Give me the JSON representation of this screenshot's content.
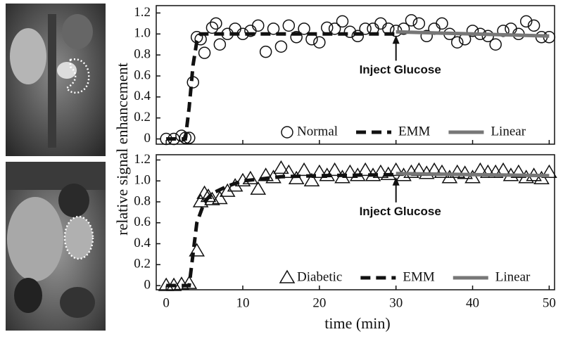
{
  "shared": {
    "y_label": "relative signal enhancement",
    "x_label": "time (min)"
  },
  "chart_data": [
    {
      "type": "scatter",
      "xlim": [
        -1.3,
        50.7
      ],
      "ylim": [
        -0.05,
        1.27
      ],
      "xticks": [
        0,
        10,
        20,
        30,
        40,
        50
      ],
      "yticks": [
        0,
        0.2,
        0.4,
        0.6,
        0.8,
        {
          "value": 1,
          "label": "1.0"
        },
        {
          "value": 1.2,
          "label": "1.2"
        }
      ],
      "legend": "lower right",
      "annotation": {
        "text": "Inject Glucose",
        "x": 30,
        "y": 1.0
      },
      "series": [
        {
          "name": "Normal",
          "marker": "circle",
          "color": "#111111",
          "x": [
            0,
            1,
            2,
            2.5,
            3,
            3.5,
            4,
            4.5,
            5,
            6,
            6.5,
            7,
            8,
            9,
            10,
            11,
            12,
            13,
            14,
            15,
            16,
            17,
            18,
            19,
            20,
            21,
            22,
            23,
            24,
            25,
            26,
            27,
            28,
            29,
            30,
            31,
            32,
            33,
            34,
            35,
            36,
            37,
            38,
            39,
            40,
            41,
            42,
            43,
            44,
            45,
            46,
            47,
            48,
            49,
            50
          ],
          "values": [
            0,
            0,
            0.03,
            0.01,
            0.01,
            0.54,
            0.97,
            0.95,
            0.82,
            1.06,
            1.1,
            0.9,
            1.0,
            1.05,
            1.0,
            1.03,
            1.08,
            0.83,
            1.05,
            0.88,
            1.08,
            0.97,
            1.05,
            0.95,
            0.92,
            1.06,
            1.05,
            1.12,
            1.02,
            0.98,
            1.05,
            1.05,
            1.1,
            1.05,
            1.03,
            1.05,
            1.13,
            1.1,
            0.98,
            1.05,
            1.1,
            1.0,
            0.92,
            0.95,
            1.03,
            1.0,
            0.98,
            0.9,
            1.03,
            1.05,
            1.0,
            1.12,
            1.08,
            0.97,
            0.97
          ]
        },
        {
          "name": "EMM",
          "style": "dashed",
          "color": "#111111",
          "x": [
            0,
            2.5,
            3,
            3.5,
            4,
            4.5,
            5,
            30
          ],
          "values": [
            0,
            0,
            0.3,
            0.7,
            0.93,
            1.0,
            1.0,
            1.0
          ]
        },
        {
          "name": "Linear",
          "style": "solid",
          "color": "#777777",
          "x": [
            30,
            50
          ],
          "values": [
            1.02,
            0.98
          ]
        }
      ]
    },
    {
      "type": "scatter",
      "xlim": [
        -1.3,
        50.7
      ],
      "ylim": [
        -0.04,
        1.25
      ],
      "xticks": [
        0,
        10,
        20,
        30,
        40,
        50
      ],
      "yticks": [
        0,
        0.2,
        0.4,
        0.6,
        0.8,
        {
          "value": 1,
          "label": "1.0"
        },
        {
          "value": 1.2,
          "label": "1.2"
        }
      ],
      "legend": "lower right",
      "annotation": {
        "text": "Inject Glucose",
        "x": 30,
        "y": 1.05
      },
      "series": [
        {
          "name": "Diabetic",
          "marker": "triangle",
          "color": "#111111",
          "x": [
            0,
            1,
            2,
            3,
            4,
            4.5,
            5,
            5.5,
            6,
            7,
            8,
            9,
            10,
            11,
            12,
            13,
            14,
            15,
            16,
            17,
            18,
            19,
            20,
            21,
            22,
            23,
            24,
            25,
            26,
            27,
            28,
            29,
            30,
            31,
            32,
            33,
            34,
            35,
            36,
            37,
            38,
            39,
            40,
            41,
            42,
            43,
            44,
            45,
            46,
            47,
            48,
            49,
            50
          ],
          "values": [
            0,
            0,
            0.01,
            0.02,
            0.33,
            0.8,
            0.88,
            0.85,
            0.82,
            0.83,
            0.9,
            0.95,
            1.0,
            1.02,
            0.92,
            1.05,
            1.03,
            1.12,
            1.08,
            1.02,
            1.1,
            1.0,
            1.08,
            1.05,
            1.1,
            1.03,
            1.08,
            1.05,
            1.1,
            1.05,
            1.08,
            1.06,
            1.1,
            1.05,
            1.08,
            1.1,
            1.07,
            1.1,
            1.08,
            1.03,
            1.08,
            1.07,
            1.03,
            1.1,
            1.08,
            1.08,
            1.1,
            1.05,
            1.08,
            1.03,
            1.05,
            1.02,
            1.08
          ]
        },
        {
          "name": "EMM",
          "style": "dashed",
          "color": "#111111",
          "x": [
            0,
            3,
            3.5,
            4,
            5,
            6,
            8,
            10,
            15,
            20,
            30
          ],
          "values": [
            0,
            0,
            0.3,
            0.6,
            0.8,
            0.88,
            0.95,
            1.0,
            1.04,
            1.05,
            1.06
          ]
        },
        {
          "name": "Linear",
          "style": "solid",
          "color": "#777777",
          "x": [
            30,
            50
          ],
          "values": [
            1.07,
            1.05
          ]
        }
      ]
    }
  ]
}
